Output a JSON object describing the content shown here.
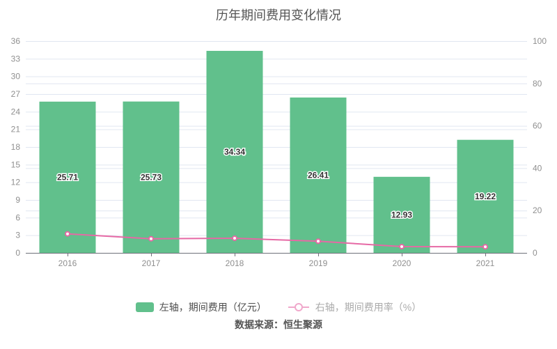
{
  "page": {
    "title": "历年期间费用变化情况",
    "source": "数据来源：恒生聚源"
  },
  "legend": {
    "bar_label": "左轴，期间费用（亿元）",
    "line_label": "右轴，期间费用率（%）"
  },
  "colors": {
    "bar": "#61c08c",
    "line": "#e669a5",
    "legend_line_marker": "#f0a8cb",
    "grid": "#e0e6f1",
    "axis_line": "#6e7079",
    "tick_label": "#8f8f8f",
    "bar_value_label": "#333333",
    "title_text": "#555555"
  },
  "chart_data": {
    "type": "bar",
    "combo": [
      "bar",
      "line"
    ],
    "title": "历年期间费用变化情况",
    "categories": [
      "2016",
      "2017",
      "2018",
      "2019",
      "2020",
      "2021"
    ],
    "series": [
      {
        "name": "左轴，期间费用（亿元）",
        "type": "bar",
        "yaxis": "left",
        "values": [
          25.71,
          25.73,
          34.34,
          26.41,
          12.93,
          19.22
        ],
        "value_labels": [
          "25.71",
          "25.73",
          "34.34",
          "26.41",
          "12.93",
          "19.22"
        ],
        "color": "#61c08c"
      },
      {
        "name": "右轴，期间费用率（%）",
        "type": "line",
        "yaxis": "right",
        "values": [
          8.98,
          6.68,
          6.9,
          5.49,
          2.96,
          2.87
        ],
        "color": "#e669a5",
        "marker": "empty-circle"
      }
    ],
    "left_axis": {
      "min": 0,
      "max": 36,
      "interval": 3,
      "ticks": [
        0,
        3,
        6,
        9,
        12,
        15,
        18,
        21,
        24,
        27,
        30,
        33,
        36
      ]
    },
    "right_axis": {
      "min": 0,
      "max": 100,
      "interval": 20,
      "ticks": [
        0,
        20,
        40,
        60,
        80,
        100
      ]
    },
    "grid": true,
    "legend_position": "bottom",
    "xlabel": "",
    "ylabel": ""
  }
}
